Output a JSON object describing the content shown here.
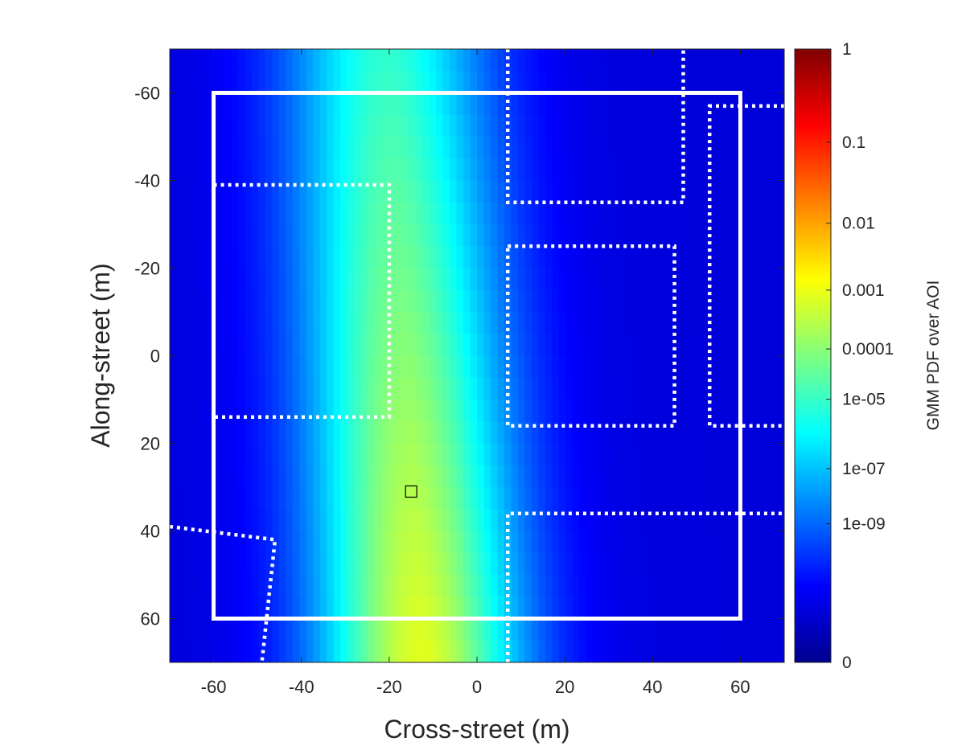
{
  "chart_data": {
    "type": "heatmap",
    "title": "",
    "xlabel": "Cross-street (m)",
    "ylabel": "Along-street (m)",
    "colorbar_label": "GMM PDF over AOI",
    "colormap": "jet",
    "xlim": [
      -70,
      70
    ],
    "ylim": [
      -70,
      70
    ],
    "y_axis_direction": "reversed",
    "x_ticks": [
      -60,
      -40,
      -20,
      0,
      20,
      40,
      60
    ],
    "y_ticks": [
      -60,
      -40,
      -20,
      0,
      20,
      40,
      60
    ],
    "x_tick_labels": [
      "-60",
      "-40",
      "-20",
      "0",
      "20",
      "40",
      "60"
    ],
    "y_tick_labels": [
      "-60",
      "-40",
      "-20",
      "0",
      "20",
      "40",
      "60"
    ],
    "colorbar": {
      "scale": "log-like (nonlinear)",
      "ticks": [
        {
          "label": "1",
          "fraction": 1.0
        },
        {
          "label": "0.1",
          "fraction": 0.848
        },
        {
          "label": "0.01",
          "fraction": 0.716
        },
        {
          "label": "0.001",
          "fraction": 0.607
        },
        {
          "label": "0.0001",
          "fraction": 0.511
        },
        {
          "label": "1e-05",
          "fraction": 0.429
        },
        {
          "label": "1e-07",
          "fraction": 0.316
        },
        {
          "label": "1e-09",
          "fraction": 0.226
        },
        {
          "label": "0",
          "fraction": 0.0
        }
      ]
    },
    "density_ridge": {
      "description": "Gaussian-mixture ridge, peak near cross-street -13 to -15 m, slightly tilted",
      "center_x_at_y_minus70": -20,
      "center_x_at_y_plus70": -12,
      "peak_colorbar_fraction_at_y_minus70": 0.42,
      "peak_colorbar_fraction_at_y_plus70": 0.6,
      "spread_m": 22
    },
    "marker": {
      "x": -15,
      "y": 31,
      "shape": "square",
      "color": "#000000"
    },
    "aoi_boundary": {
      "style": "solid",
      "color": "#ffffff",
      "x": [
        -60,
        60
      ],
      "y": [
        -60,
        60
      ]
    },
    "building_outlines": [
      {
        "name": "building-1",
        "style": "dotted",
        "points": [
          [
            -60,
            -39
          ],
          [
            -20,
            -39
          ],
          [
            -20,
            14
          ],
          [
            -60,
            14
          ]
        ]
      },
      {
        "name": "building-2",
        "style": "dotted",
        "points": [
          [
            7,
            -70
          ],
          [
            7,
            -35
          ],
          [
            47,
            -35
          ],
          [
            47,
            -70
          ]
        ]
      },
      {
        "name": "building-3",
        "style": "dotted",
        "points": [
          [
            7,
            -25
          ],
          [
            45,
            -25
          ],
          [
            45,
            16
          ],
          [
            7,
            16
          ]
        ],
        "closed": true
      },
      {
        "name": "building-4",
        "style": "dotted",
        "points": [
          [
            70,
            -57
          ],
          [
            53,
            -57
          ],
          [
            53,
            16
          ],
          [
            70,
            16
          ]
        ]
      },
      {
        "name": "building-5",
        "style": "dotted",
        "points": [
          [
            7,
            70
          ],
          [
            7,
            36
          ],
          [
            70,
            36
          ]
        ]
      },
      {
        "name": "building-6",
        "style": "dotted",
        "points": [
          [
            -70,
            39
          ],
          [
            -46,
            42
          ],
          [
            -49,
            70
          ]
        ]
      }
    ]
  }
}
